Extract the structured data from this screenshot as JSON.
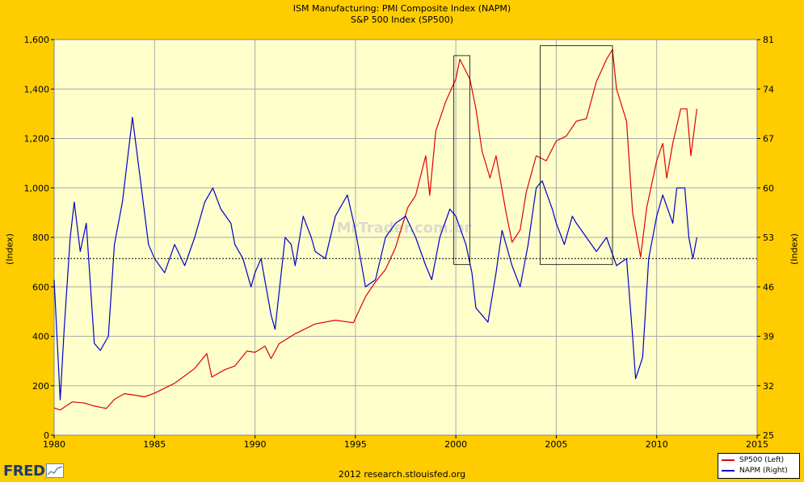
{
  "titles": {
    "line1": "ISM Manufacturing: PMI Composite Index (NAPM)",
    "line2": "S&P 500 Index (SP500)"
  },
  "source": "2012 research.stlouisfed.org",
  "logo": {
    "text": "FRED"
  },
  "watermark": "MrTrader.com.br",
  "colors": {
    "background": "#FFCC00",
    "plot_background": "#FFFFCC",
    "sp500": "#E00000",
    "napm": "#0000CC"
  },
  "chart_data": {
    "type": "line",
    "title": "ISM Manufacturing: PMI Composite Index (NAPM)",
    "subtitle": "S&P 500 Index (SP500)",
    "xlabel": "",
    "x_range": [
      1980,
      2015
    ],
    "x_ticks": [
      "1980",
      "1985",
      "1990",
      "1995",
      "2000",
      "2005",
      "2010",
      "2015"
    ],
    "ylabel_left": "(Index)",
    "ylabel_right": "(Index)",
    "ylim_left": [
      0,
      1600
    ],
    "ylim_right": [
      25,
      81
    ],
    "left_ticks": [
      "0",
      "200",
      "400",
      "600",
      "800",
      "1,000",
      "1,200",
      "1,400",
      "1,600"
    ],
    "right_ticks": [
      "25",
      "32",
      "39",
      "46",
      "53",
      "60",
      "67",
      "74",
      "81"
    ],
    "grid": true,
    "legend_position": "bottom-right",
    "reference_line_right": 50,
    "series": [
      {
        "name": "SP500 (Left)",
        "axis": "left",
        "points": [
          [
            1980.0,
            110
          ],
          [
            1980.3,
            102
          ],
          [
            1980.9,
            135
          ],
          [
            1981.5,
            130
          ],
          [
            1982.0,
            118
          ],
          [
            1982.6,
            108
          ],
          [
            1983.0,
            145
          ],
          [
            1983.5,
            168
          ],
          [
            1984.0,
            162
          ],
          [
            1984.5,
            155
          ],
          [
            1985.0,
            170
          ],
          [
            1985.5,
            190
          ],
          [
            1986.0,
            210
          ],
          [
            1986.5,
            240
          ],
          [
            1987.0,
            270
          ],
          [
            1987.6,
            330
          ],
          [
            1987.85,
            235
          ],
          [
            1988.5,
            265
          ],
          [
            1989.0,
            280
          ],
          [
            1989.6,
            340
          ],
          [
            1990.0,
            335
          ],
          [
            1990.5,
            360
          ],
          [
            1990.8,
            310
          ],
          [
            1991.2,
            370
          ],
          [
            1992.0,
            410
          ],
          [
            1993.0,
            450
          ],
          [
            1994.0,
            465
          ],
          [
            1994.9,
            455
          ],
          [
            1995.5,
            560
          ],
          [
            1996.0,
            620
          ],
          [
            1996.5,
            670
          ],
          [
            1997.0,
            760
          ],
          [
            1997.6,
            920
          ],
          [
            1998.0,
            970
          ],
          [
            1998.5,
            1130
          ],
          [
            1998.7,
            970
          ],
          [
            1999.0,
            1230
          ],
          [
            1999.5,
            1350
          ],
          [
            2000.0,
            1440
          ],
          [
            2000.2,
            1520
          ],
          [
            2000.7,
            1440
          ],
          [
            2001.0,
            1320
          ],
          [
            2001.3,
            1150
          ],
          [
            2001.7,
            1040
          ],
          [
            2002.0,
            1130
          ],
          [
            2002.5,
            900
          ],
          [
            2002.8,
            780
          ],
          [
            2003.2,
            830
          ],
          [
            2003.5,
            980
          ],
          [
            2004.0,
            1130
          ],
          [
            2004.5,
            1110
          ],
          [
            2005.0,
            1190
          ],
          [
            2005.5,
            1210
          ],
          [
            2006.0,
            1270
          ],
          [
            2006.5,
            1280
          ],
          [
            2007.0,
            1430
          ],
          [
            2007.5,
            1520
          ],
          [
            2007.8,
            1560
          ],
          [
            2008.0,
            1400
          ],
          [
            2008.5,
            1270
          ],
          [
            2008.8,
            900
          ],
          [
            2009.2,
            720
          ],
          [
            2009.5,
            920
          ],
          [
            2010.0,
            1110
          ],
          [
            2010.3,
            1180
          ],
          [
            2010.5,
            1040
          ],
          [
            2010.8,
            1180
          ],
          [
            2011.2,
            1320
          ],
          [
            2011.5,
            1320
          ],
          [
            2011.7,
            1130
          ],
          [
            2012.0,
            1320
          ]
        ]
      },
      {
        "name": "NAPM (Right)",
        "axis": "right",
        "points": [
          [
            1980.0,
            47
          ],
          [
            1980.3,
            30
          ],
          [
            1980.5,
            40
          ],
          [
            1980.8,
            53
          ],
          [
            1981.0,
            58
          ],
          [
            1981.3,
            51
          ],
          [
            1981.6,
            55
          ],
          [
            1982.0,
            38
          ],
          [
            1982.3,
            37
          ],
          [
            1982.7,
            39
          ],
          [
            1983.0,
            52
          ],
          [
            1983.4,
            58
          ],
          [
            1983.9,
            70
          ],
          [
            1984.3,
            61
          ],
          [
            1984.7,
            52
          ],
          [
            1985.0,
            50
          ],
          [
            1985.5,
            48
          ],
          [
            1986.0,
            52
          ],
          [
            1986.5,
            49
          ],
          [
            1987.0,
            53
          ],
          [
            1987.5,
            58
          ],
          [
            1987.9,
            60
          ],
          [
            1988.3,
            57
          ],
          [
            1988.8,
            55
          ],
          [
            1989.0,
            52
          ],
          [
            1989.4,
            50
          ],
          [
            1989.8,
            46
          ],
          [
            1990.0,
            48
          ],
          [
            1990.3,
            50
          ],
          [
            1990.8,
            42
          ],
          [
            1991.0,
            40
          ],
          [
            1991.5,
            53
          ],
          [
            1991.8,
            52
          ],
          [
            1992.0,
            49
          ],
          [
            1992.4,
            56
          ],
          [
            1992.8,
            53
          ],
          [
            1993.0,
            51
          ],
          [
            1993.5,
            50
          ],
          [
            1994.0,
            56
          ],
          [
            1994.6,
            59
          ],
          [
            1995.0,
            54
          ],
          [
            1995.5,
            46
          ],
          [
            1996.0,
            47
          ],
          [
            1996.5,
            53
          ],
          [
            1997.0,
            55
          ],
          [
            1997.5,
            56
          ],
          [
            1998.0,
            53
          ],
          [
            1998.5,
            49
          ],
          [
            1998.8,
            47
          ],
          [
            1999.2,
            53
          ],
          [
            1999.7,
            57
          ],
          [
            2000.0,
            56
          ],
          [
            2000.5,
            52
          ],
          [
            2000.8,
            48
          ],
          [
            2001.0,
            43
          ],
          [
            2001.3,
            42
          ],
          [
            2001.6,
            41
          ],
          [
            2002.0,
            48
          ],
          [
            2002.3,
            54
          ],
          [
            2002.8,
            49
          ],
          [
            2003.2,
            46
          ],
          [
            2003.6,
            52
          ],
          [
            2004.0,
            60
          ],
          [
            2004.3,
            61
          ],
          [
            2004.8,
            57
          ],
          [
            2005.0,
            55
          ],
          [
            2005.4,
            52
          ],
          [
            2005.8,
            56
          ],
          [
            2006.0,
            55
          ],
          [
            2006.5,
            53
          ],
          [
            2007.0,
            51
          ],
          [
            2007.5,
            53
          ],
          [
            2008.0,
            49
          ],
          [
            2008.5,
            50
          ],
          [
            2008.8,
            39
          ],
          [
            2008.95,
            33
          ],
          [
            2009.3,
            36
          ],
          [
            2009.6,
            50
          ],
          [
            2010.0,
            56
          ],
          [
            2010.3,
            59
          ],
          [
            2010.8,
            55
          ],
          [
            2011.0,
            60
          ],
          [
            2011.4,
            60
          ],
          [
            2011.6,
            53
          ],
          [
            2011.8,
            50
          ],
          [
            2012.0,
            53
          ]
        ]
      }
    ],
    "annotations": [
      {
        "type": "rectangle",
        "x_from": 1999.9,
        "x_to": 2000.7,
        "y_from": 690,
        "y_to": 1535
      },
      {
        "type": "rectangle",
        "x_from": 2004.2,
        "x_to": 2007.8,
        "y_from": 690,
        "y_to": 1575
      }
    ]
  }
}
